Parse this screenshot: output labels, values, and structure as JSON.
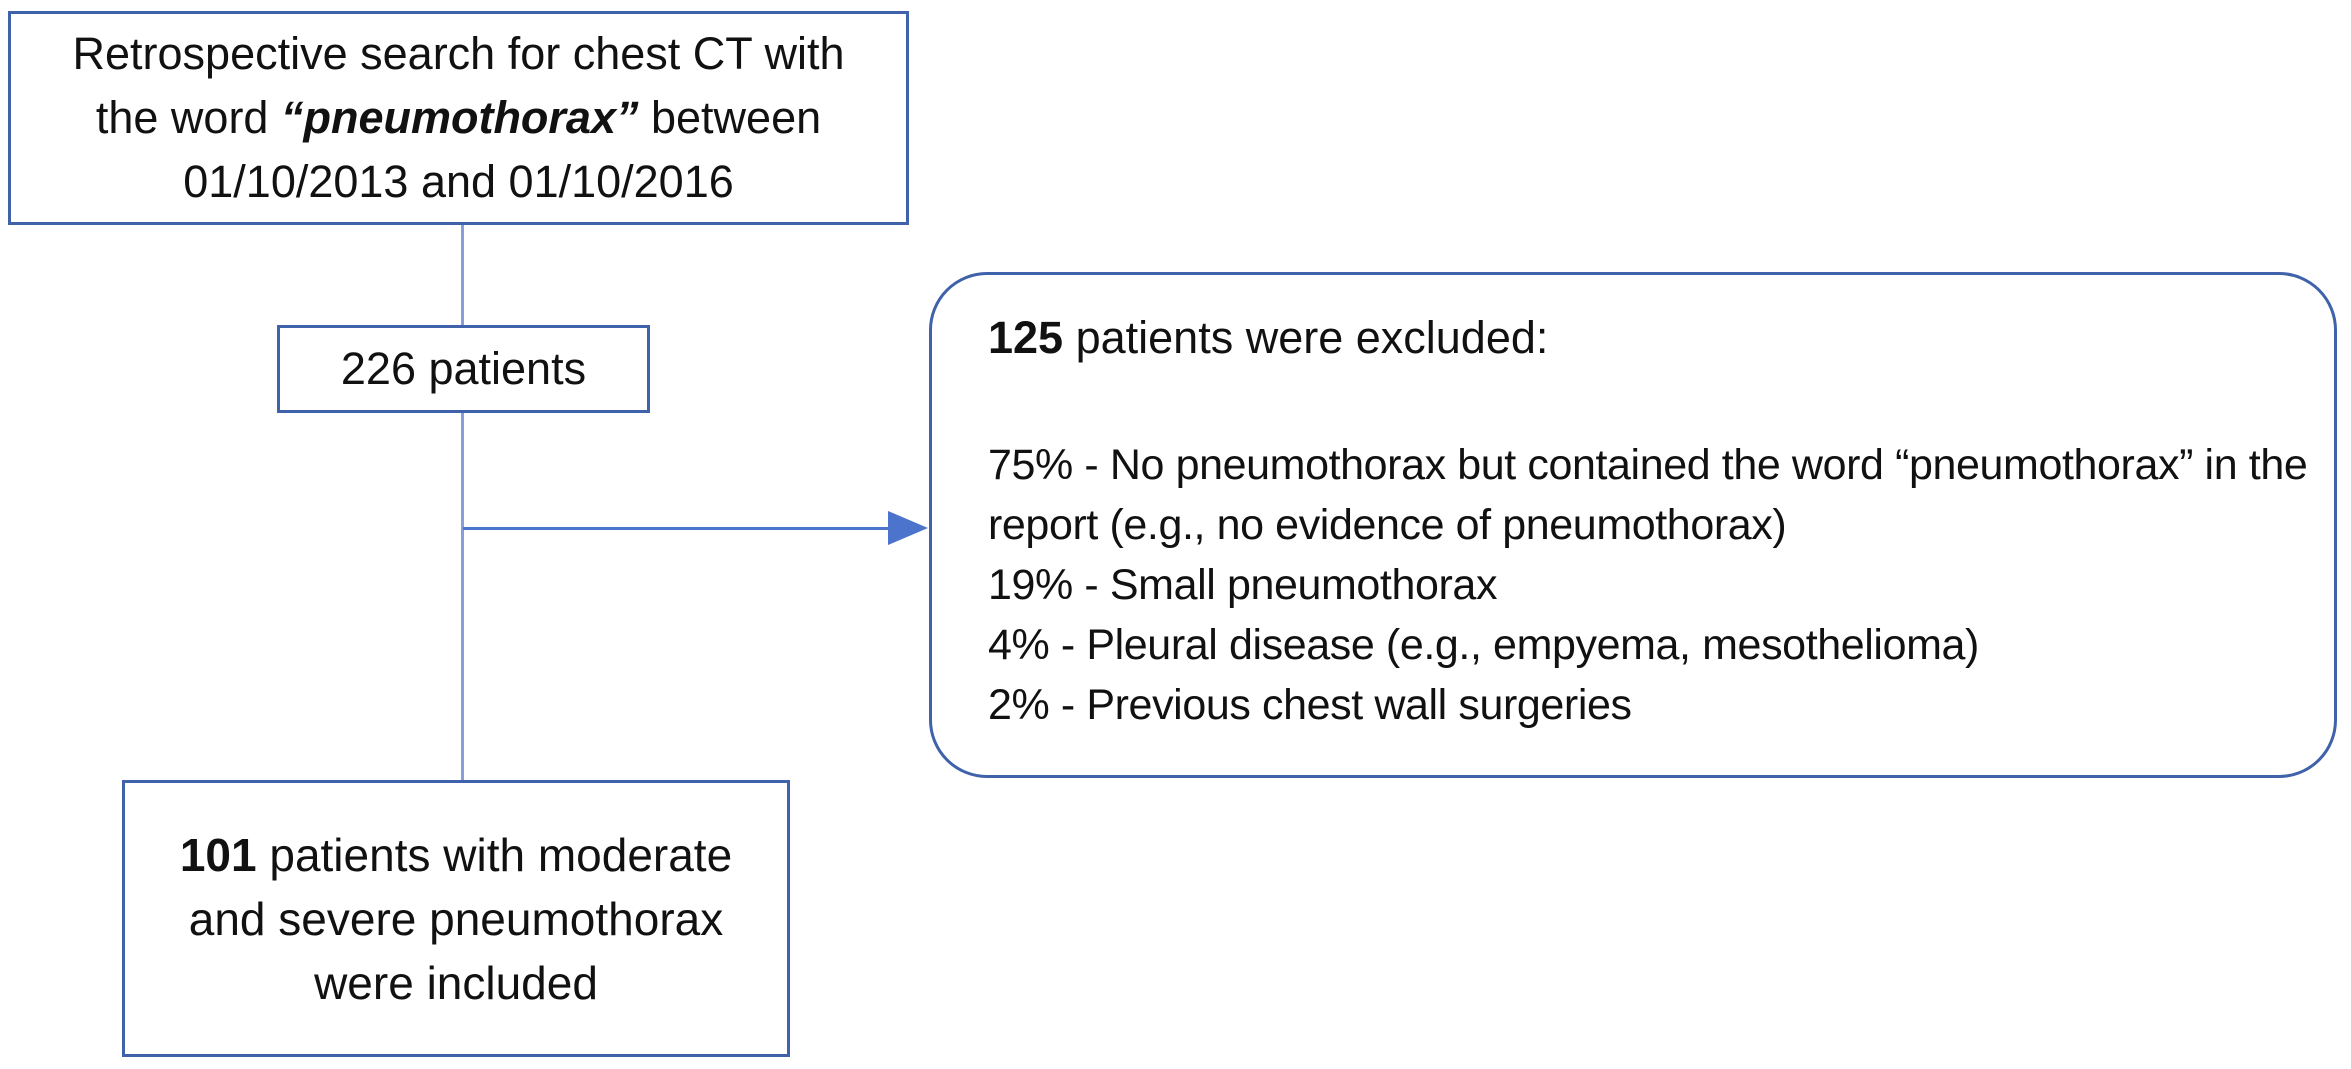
{
  "colors": {
    "box-border": "#3f62ab",
    "connector": "#879edd",
    "arrow": "#4d74cc",
    "text": "#111111",
    "background": "#ffffff"
  },
  "search_box": {
    "line1": "Retrospective search for chest CT with",
    "line2_prefix": "the word ",
    "line2_emphasis": "“pneumothorax”",
    "line2_suffix": " between",
    "line3": "01/10/2013 and 01/10/2016"
  },
  "count_box": {
    "label": "226 patients"
  },
  "exclusion_box": {
    "title_count": "125",
    "title_text": " patients were excluded:",
    "items": [
      "75% - No pneumothorax but contained the word “pneumothorax” in the",
      "report (e.g., no evidence of pneumothorax)",
      "19% - Small pneumothorax",
      "4% - Pleural disease (e.g., empyema, mesothelioma)",
      "2% - Previous chest wall surgeries"
    ]
  },
  "included_box": {
    "line1_count": "101",
    "line1_text": " patients with moderate",
    "line2": "and severe pneumothorax",
    "line3": "were included"
  }
}
